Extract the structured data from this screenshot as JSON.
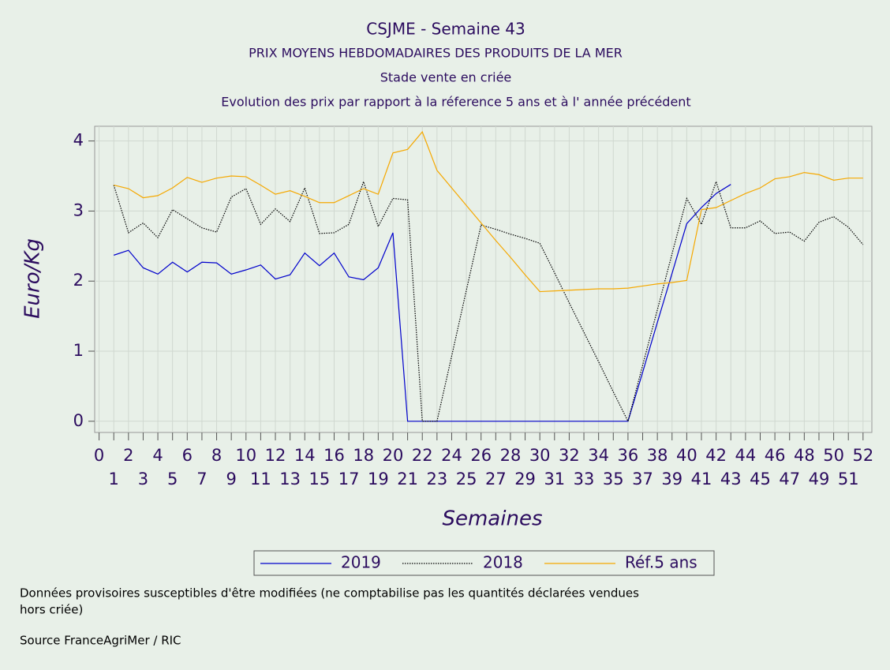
{
  "chart_data": {
    "type": "line",
    "title": "CSJME - Semaine 43",
    "subtitle": [
      "PRIX MOYENS HEBDOMADAIRES DES PRODUITS DE LA MER",
      "Stade vente en criée",
      "Evolution des prix par rapport à la réference 5 ans et à l' année précédent"
    ],
    "x_label": "Semaines",
    "y_label": "Euro/Kg",
    "x": [
      1,
      2,
      3,
      4,
      5,
      6,
      7,
      8,
      9,
      10,
      11,
      12,
      13,
      14,
      15,
      16,
      17,
      18,
      19,
      20,
      21,
      22,
      23,
      24,
      25,
      26,
      27,
      28,
      29,
      30,
      31,
      32,
      33,
      34,
      35,
      36,
      37,
      38,
      39,
      40,
      41,
      42,
      43,
      44,
      45,
      46,
      47,
      48,
      49,
      50,
      51,
      52
    ],
    "series": [
      {
        "name": "2019",
        "color": "#0000cc",
        "values": [
          2.37,
          2.44,
          2.19,
          2.1,
          2.27,
          2.13,
          2.27,
          2.26,
          2.1,
          2.16,
          2.23,
          2.03,
          2.09,
          2.4,
          2.22,
          2.4,
          2.06,
          2.02,
          2.19,
          2.69,
          0,
          0,
          0,
          0,
          0,
          0,
          0,
          0,
          0,
          0,
          0,
          0,
          0,
          0,
          0,
          0,
          0.7,
          1.41,
          2.11,
          2.82,
          3.05,
          3.25,
          3.38,
          null,
          null,
          null,
          null,
          null,
          null,
          null,
          null,
          null
        ]
      },
      {
        "name": "2018",
        "color": "#000000",
        "dashed": true,
        "values": [
          3.37,
          2.69,
          2.83,
          2.62,
          3.02,
          2.89,
          2.76,
          2.7,
          3.2,
          3.32,
          2.81,
          3.03,
          2.85,
          3.33,
          2.68,
          2.69,
          2.81,
          3.42,
          2.78,
          3.18,
          3.16,
          0,
          0,
          0.93,
          1.87,
          2.8,
          2.74,
          2.67,
          2.61,
          2.54,
          2.12,
          1.69,
          1.27,
          0.85,
          0.42,
          0,
          0.8,
          1.59,
          2.39,
          3.18,
          2.81,
          3.42,
          2.76,
          2.76,
          2.86,
          2.68,
          2.7,
          2.57,
          2.84,
          2.92,
          2.77,
          2.52
        ]
      },
      {
        "name": "Réf.5 ans",
        "color": "#f5a800",
        "values": [
          3.37,
          3.32,
          3.19,
          3.22,
          3.33,
          3.48,
          3.41,
          3.47,
          3.5,
          3.49,
          3.37,
          3.24,
          3.29,
          3.21,
          3.12,
          3.12,
          3.22,
          3.32,
          3.24,
          3.83,
          3.88,
          4.13,
          3.58,
          3.33,
          3.08,
          2.83,
          2.58,
          2.34,
          2.09,
          1.85,
          1.86,
          1.87,
          1.88,
          1.89,
          1.89,
          1.9,
          1.93,
          1.96,
          1.98,
          2.01,
          3.02,
          3.05,
          3.15,
          3.25,
          3.33,
          3.46,
          3.49,
          3.55,
          3.52,
          3.44,
          3.47,
          3.47
        ]
      }
    ],
    "xlim": [
      -0.3,
      52.6
    ],
    "ylim": [
      -0.16,
      4.21
    ],
    "xticks": [
      0,
      1,
      2,
      3,
      4,
      5,
      6,
      7,
      8,
      9,
      10,
      11,
      12,
      13,
      14,
      15,
      16,
      17,
      18,
      19,
      20,
      21,
      22,
      23,
      24,
      25,
      26,
      27,
      28,
      29,
      30,
      31,
      32,
      33,
      34,
      35,
      36,
      37,
      38,
      39,
      40,
      41,
      42,
      43,
      44,
      45,
      46,
      47,
      48,
      49,
      50,
      51,
      52
    ],
    "yticks": [
      0,
      1,
      2,
      3,
      4
    ],
    "grid": true,
    "legend": "bottom",
    "notes": [
      "Données provisoires susceptibles d'être modifiées (ne comptabilise pas les quantités déclarées vendues",
      "hors criée)",
      "Source FranceAgriMer / RIC"
    ]
  }
}
